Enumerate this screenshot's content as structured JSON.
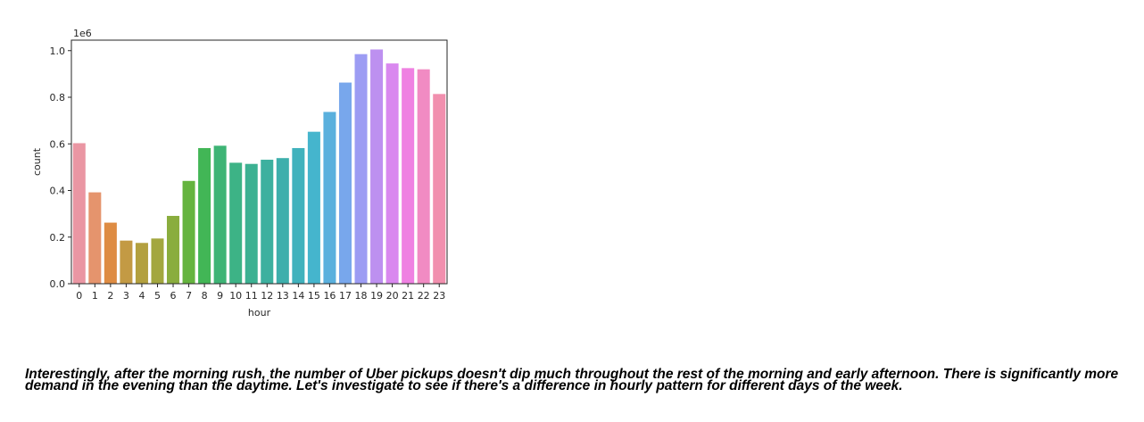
{
  "chart_data": {
    "type": "bar",
    "title": "",
    "xlabel": "hour",
    "ylabel": "count",
    "offset_label": "1e6",
    "categories": [
      "0",
      "1",
      "2",
      "3",
      "4",
      "5",
      "6",
      "7",
      "8",
      "9",
      "10",
      "11",
      "12",
      "13",
      "14",
      "15",
      "16",
      "17",
      "18",
      "19",
      "20",
      "21",
      "22",
      "23"
    ],
    "values": [
      603000,
      392000,
      262000,
      185000,
      175000,
      194000,
      291000,
      441000,
      582000,
      592000,
      519000,
      514000,
      532000,
      539000,
      582000,
      652000,
      737000,
      863000,
      985000,
      1005000,
      945000,
      925000,
      920000,
      814000
    ],
    "colors": [
      "#ea96a3",
      "#e5946d",
      "#de8c43",
      "#c39a44",
      "#b3a03f",
      "#a3a73f",
      "#8aad3e",
      "#65b43f",
      "#42b656",
      "#3eb475",
      "#3db386",
      "#3cb192",
      "#3db09f",
      "#3eafac",
      "#40b2bd",
      "#45b5cd",
      "#5ab0dd",
      "#78a7ec",
      "#9c9cf3",
      "#bd90f0",
      "#d988ef",
      "#ef81e2",
      "#f18bc3",
      "#f18fae"
    ],
    "yticks": [
      "0.0",
      "0.2",
      "0.4",
      "0.6",
      "0.8",
      "1.0"
    ],
    "ylim": [
      0,
      1045000
    ],
    "grid": false
  },
  "commentary": "Interestingly, after the morning rush, the number of Uber pickups doesn't dip much throughout the rest of the morning and early afternoon. There is significantly more demand in the evening than the daytime. Let's investigate to see if there's a difference in hourly pattern for different days of the week."
}
